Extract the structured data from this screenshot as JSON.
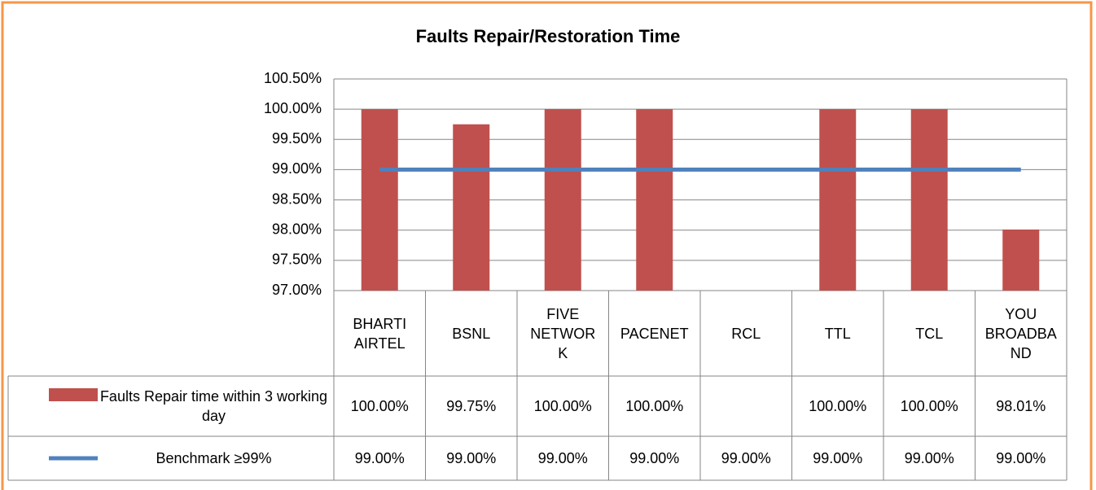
{
  "chart_data": {
    "type": "bar",
    "title": "Faults Repair/Restoration Time",
    "categories": [
      "BHARTI AIRTEL",
      "BSNL",
      "FIVE NETWORK",
      "PACENET",
      "RCL",
      "TTL",
      "TCL",
      "YOU BROADBAND"
    ],
    "series": [
      {
        "name": "Faults Repair time within 3 working day",
        "type": "bar",
        "color": "#c0504d",
        "values": [
          100,
          99.75,
          100,
          100,
          null,
          100,
          100,
          98.01
        ],
        "value_labels": [
          "100.00%",
          "99.75%",
          "100.00%",
          "100.00%",
          null,
          "100.00%",
          "100.00%",
          "98.01%"
        ]
      },
      {
        "name": "Benchmark ≥99%",
        "type": "line",
        "color": "#4f81bd",
        "values": [
          99,
          99,
          99,
          99,
          99,
          99,
          99,
          99
        ],
        "value_labels": [
          "99.00%",
          "99.00%",
          "99.00%",
          "99.00%",
          "99.00%",
          "99.00%",
          "99.00%",
          "99.00%"
        ]
      }
    ],
    "ylim": [
      97,
      100.5
    ],
    "yticks": [
      {
        "value": 97,
        "label": "97.00%"
      },
      {
        "value": 97.5,
        "label": "97.50%"
      },
      {
        "value": 98,
        "label": "98.00%"
      },
      {
        "value": 98.5,
        "label": "98.50%"
      },
      {
        "value": 99,
        "label": "99.00%"
      },
      {
        "value": 99.5,
        "label": "99.50%"
      },
      {
        "value": 100,
        "label": "100.00%"
      },
      {
        "value": 100.5,
        "label": "100.50%"
      }
    ],
    "grid": true
  }
}
